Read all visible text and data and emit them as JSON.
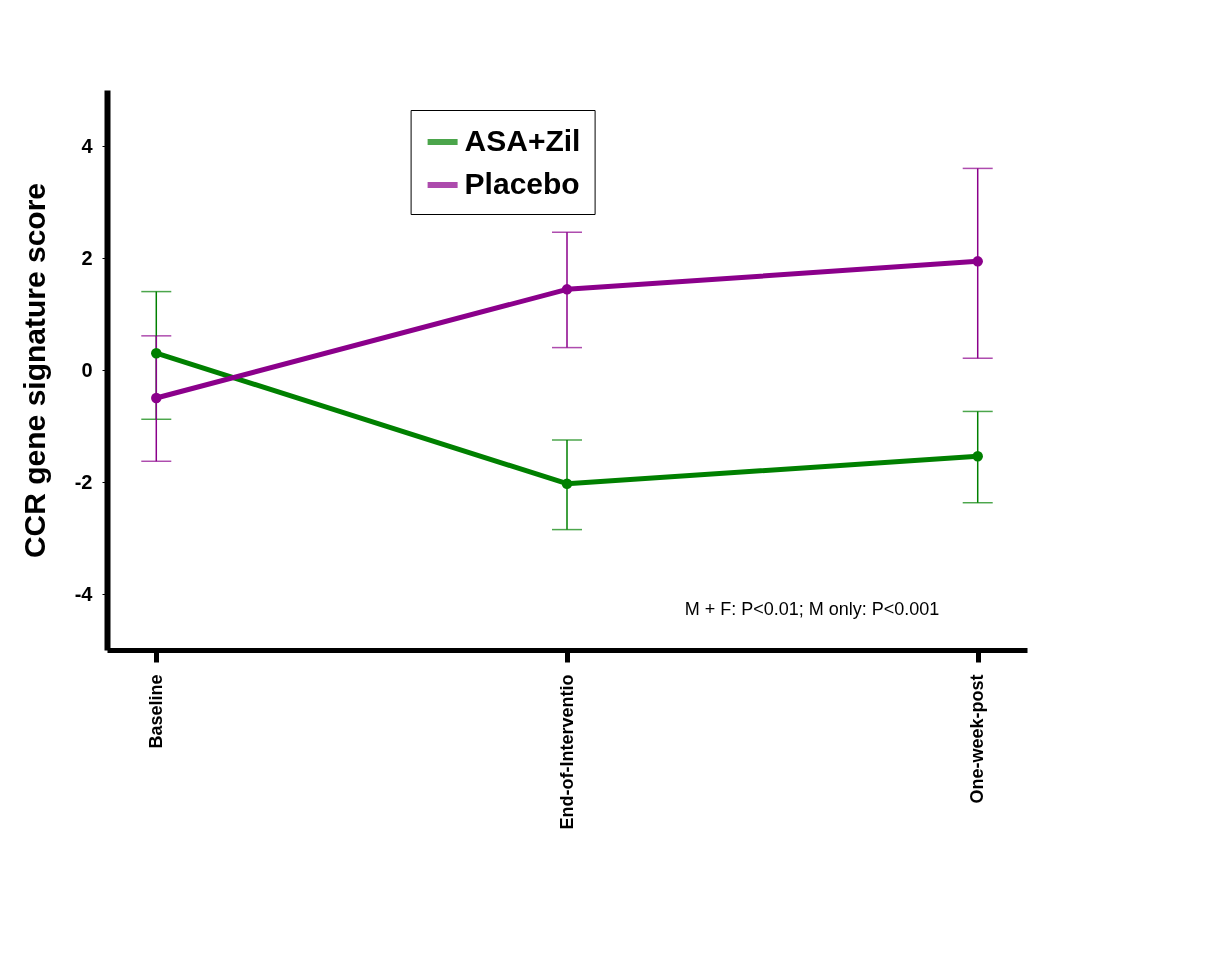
{
  "chart_data": {
    "type": "line",
    "ylabel": "CCR gene signature score",
    "categories": [
      "Baseline",
      "End-of-Interventio",
      "One-week-post"
    ],
    "series": [
      {
        "name": "ASA+Zil",
        "color": "#008000",
        "values": [
          0.3,
          -2.03,
          -1.54
        ],
        "errors": [
          [
            -0.88,
            1.4
          ],
          [
            -2.85,
            -1.25
          ],
          [
            -2.37,
            -0.74
          ]
        ]
      },
      {
        "name": "Placebo",
        "color": "#8b008b",
        "values": [
          -0.5,
          1.44,
          1.94
        ],
        "errors": [
          [
            -1.63,
            0.61
          ],
          [
            0.4,
            2.46
          ],
          [
            0.21,
            3.6
          ]
        ]
      }
    ],
    "ylim": [
      -5,
      5
    ],
    "yticks": [
      -4,
      -2,
      0,
      2,
      4
    ],
    "grid": false,
    "legend": "top",
    "marker": "circle",
    "line_style": "solid",
    "annotations": [
      "M + F: P<0.01; M only: P<0.001"
    ]
  }
}
